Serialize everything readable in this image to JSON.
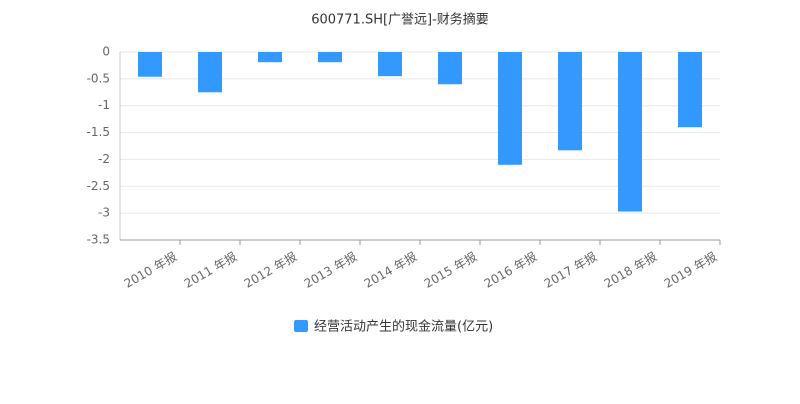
{
  "chart_data": {
    "type": "bar",
    "title": "600771.SH[广誉远]-财务摘要",
    "categories": [
      "2010 年报",
      "2011 年报",
      "2012 年报",
      "2013 年报",
      "2014 年报",
      "2015 年报",
      "2016 年报",
      "2017 年报",
      "2018 年报",
      "2019 年报"
    ],
    "series": [
      {
        "name": "经营活动产生的现金流量(亿元)",
        "color": "#3399ff",
        "values": [
          -0.46,
          -0.75,
          -0.19,
          -0.19,
          -0.45,
          -0.6,
          -2.1,
          -1.83,
          -2.97,
          -1.4
        ]
      }
    ],
    "ylim": [
      -3.5,
      0
    ],
    "yticks": [
      0,
      -0.5,
      -1,
      -1.5,
      -2,
      -2.5,
      -3,
      -3.5
    ],
    "grid": true
  }
}
